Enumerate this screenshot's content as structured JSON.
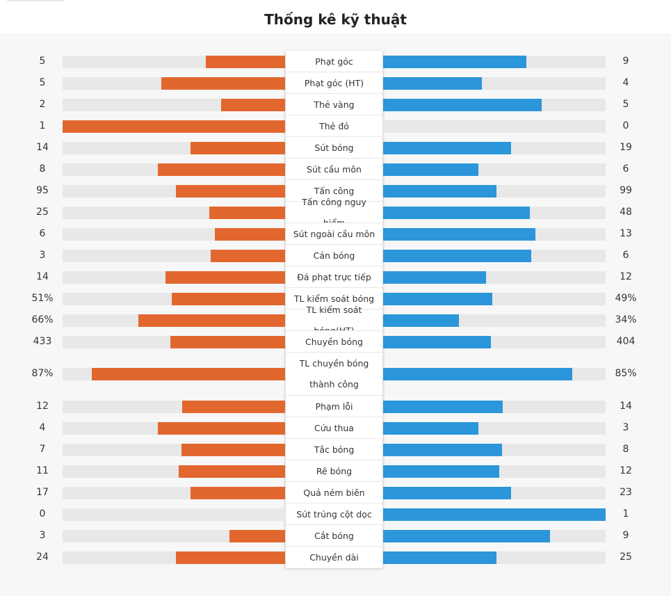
{
  "title": "Thống kê kỹ thuật",
  "colors": {
    "home": "#e2672f",
    "away": "#2b96d9",
    "track": "#e8e8e8"
  },
  "chart_data": {
    "type": "bar",
    "layout": "diverging",
    "title": "Thống kê kỹ thuật",
    "series": [
      {
        "name": "home",
        "side": "left"
      },
      {
        "name": "away",
        "side": "right"
      }
    ],
    "rows": [
      {
        "label": "Phạt góc",
        "home": "5",
        "away": "9",
        "home_share": 0.357,
        "away_share": 0.643
      },
      {
        "label": "Phạt góc (HT)",
        "home": "5",
        "away": "4",
        "home_share": 0.556,
        "away_share": 0.444
      },
      {
        "label": "Thẻ vàng",
        "home": "2",
        "away": "5",
        "home_share": 0.286,
        "away_share": 0.714
      },
      {
        "label": "Thẻ đỏ",
        "home": "1",
        "away": "0",
        "home_share": 1.0,
        "away_share": 0.0
      },
      {
        "label": "Sút bóng",
        "home": "14",
        "away": "19",
        "home_share": 0.424,
        "away_share": 0.576
      },
      {
        "label": "Sút cầu môn",
        "home": "8",
        "away": "6",
        "home_share": 0.571,
        "away_share": 0.429
      },
      {
        "label": "Tấn công",
        "home": "95",
        "away": "99",
        "home_share": 0.49,
        "away_share": 0.51
      },
      {
        "label": "Tấn công nguy hiểm",
        "home": "25",
        "away": "48",
        "home_share": 0.342,
        "away_share": 0.658
      },
      {
        "label": "Sút ngoài cầu môn",
        "home": "6",
        "away": "13",
        "home_share": 0.316,
        "away_share": 0.684
      },
      {
        "label": "Cản bóng",
        "home": "3",
        "away": "6",
        "home_share": 0.333,
        "away_share": 0.667
      },
      {
        "label": "Đá phạt trực tiếp",
        "home": "14",
        "away": "12",
        "home_share": 0.538,
        "away_share": 0.462
      },
      {
        "label": "TL kiểm soát bóng",
        "home": "51%",
        "away": "49%",
        "home_share": 0.51,
        "away_share": 0.49
      },
      {
        "label": "TL kiểm soát bóng(HT)",
        "home": "66%",
        "away": "34%",
        "home_share": 0.66,
        "away_share": 0.34
      },
      {
        "label": "Chuyền bóng",
        "home": "433",
        "away": "404",
        "home_share": 0.517,
        "away_share": 0.483
      },
      {
        "label": "TL chuyền bóng thành công",
        "home": "87%",
        "away": "85%",
        "home_share": 0.87,
        "away_share": 0.85,
        "tall": true
      },
      {
        "label": "Phạm lỗi",
        "home": "12",
        "away": "14",
        "home_share": 0.462,
        "away_share": 0.538
      },
      {
        "label": "Cứu thua",
        "home": "4",
        "away": "3",
        "home_share": 0.571,
        "away_share": 0.429
      },
      {
        "label": "Tắc bóng",
        "home": "7",
        "away": "8",
        "home_share": 0.467,
        "away_share": 0.533
      },
      {
        "label": "Rê bóng",
        "home": "11",
        "away": "12",
        "home_share": 0.478,
        "away_share": 0.522
      },
      {
        "label": "Quả ném biên",
        "home": "17",
        "away": "23",
        "home_share": 0.425,
        "away_share": 0.575
      },
      {
        "label": "Sút trúng cột dọc",
        "home": "0",
        "away": "1",
        "home_share": 0.0,
        "away_share": 1.0
      },
      {
        "label": "Cắt bóng",
        "home": "3",
        "away": "9",
        "home_share": 0.25,
        "away_share": 0.75
      },
      {
        "label": "Chuyền dài",
        "home": "24",
        "away": "25",
        "home_share": 0.49,
        "away_share": 0.51
      }
    ]
  }
}
